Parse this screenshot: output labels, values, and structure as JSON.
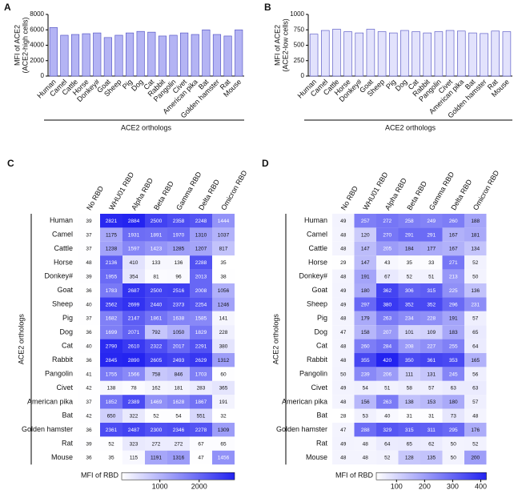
{
  "chart_data": [
    {
      "type": "bar",
      "panel": "A",
      "ylabel": [
        "MFI of ACE2",
        "(ACE2-high cells)"
      ],
      "xlabel": "ACE2 orthologs",
      "categories": [
        "Human",
        "Camel",
        "Cattle",
        "Horse",
        "Donkey#",
        "Goat",
        "Sheep",
        "Pig",
        "Dog",
        "Cat",
        "Rabbit",
        "Pangolin",
        "Civet",
        "American pika",
        "Bat",
        "Golden hamster",
        "Rat",
        "Mouse"
      ],
      "values": [
        6300,
        5300,
        5400,
        5500,
        5600,
        5000,
        5300,
        5600,
        5800,
        5700,
        5200,
        5300,
        5600,
        5400,
        6000,
        5400,
        5200,
        6000
      ],
      "color": "#b4b4f4",
      "edge": "#4a4ac0",
      "ylim": [
        0,
        8000
      ],
      "yticks": [
        0,
        2000,
        4000,
        6000,
        8000
      ]
    },
    {
      "type": "bar",
      "panel": "B",
      "ylabel": [
        "MFI of ACE2",
        "(ACE2-low cells)"
      ],
      "xlabel": "ACE2 orthologs",
      "categories": [
        "Human",
        "Camel",
        "Cattle",
        "Horse",
        "Donkey#",
        "Goat",
        "Sheep",
        "Pig",
        "Dog",
        "Cat",
        "Rabbit",
        "Pangolin",
        "Civet",
        "American pika",
        "Bat",
        "Golden hamster",
        "Rat",
        "Mouse"
      ],
      "values": [
        680,
        740,
        760,
        720,
        700,
        760,
        720,
        700,
        740,
        720,
        700,
        720,
        740,
        730,
        700,
        690,
        730,
        720
      ],
      "color": "#e2e2fc",
      "edge": "#4a4ac0",
      "ylim": [
        0,
        1000
      ],
      "yticks": [
        0,
        250,
        500,
        750,
        1000
      ]
    },
    {
      "type": "heatmap",
      "panel": "C",
      "ylabel": "ACE2 orthologs",
      "columns": [
        "No RBD",
        "WHU01 RBD",
        "Alpha RBD",
        "Beta RBD",
        "Gamma RBD",
        "Delta RBD",
        "Omicron RBD"
      ],
      "rows": [
        "Human",
        "Camel",
        "Cattle",
        "Horse",
        "Donkey#",
        "Goat",
        "Sheep",
        "Pig",
        "Dog",
        "Cat",
        "Rabbit",
        "Pangolin",
        "Civet",
        "American pika",
        "Bat",
        "Golden hamster",
        "Rat",
        "Mouse"
      ],
      "values": [
        [
          39,
          2821,
          2884,
          2500,
          2358,
          2248,
          1444
        ],
        [
          37,
          1175,
          1931,
          1891,
          1970,
          1310,
          1037
        ],
        [
          37,
          1238,
          1597,
          1423,
          1285,
          1207,
          817
        ],
        [
          48,
          2136,
          410,
          133,
          136,
          2288,
          35
        ],
        [
          39,
          1955,
          354,
          81,
          96,
          2013,
          38
        ],
        [
          36,
          1783,
          2687,
          2500,
          2516,
          2008,
          1056
        ],
        [
          40,
          2562,
          2699,
          2440,
          2373,
          2254,
          1246
        ],
        [
          37,
          1682,
          2147,
          1861,
          1638,
          1585,
          141
        ],
        [
          36,
          1699,
          2071,
          792,
          1050,
          1829,
          228
        ],
        [
          40,
          2790,
          2610,
          2322,
          2017,
          2291,
          380
        ],
        [
          36,
          2845,
          2890,
          2605,
          2493,
          2629,
          1312
        ],
        [
          41,
          1755,
          1566,
          758,
          846,
          1703,
          60
        ],
        [
          42,
          138,
          78,
          162,
          181,
          283,
          365
        ],
        [
          37,
          1852,
          2389,
          1469,
          1628,
          1867,
          191
        ],
        [
          42,
          650,
          322,
          52,
          54,
          551,
          32
        ],
        [
          36,
          2361,
          2487,
          2300,
          2346,
          2278,
          1309
        ],
        [
          39,
          52,
          323,
          272,
          272,
          67,
          65
        ],
        [
          36,
          35,
          115,
          1191,
          1316,
          47,
          1456
        ]
      ],
      "colorbar": {
        "label": "MFI of RBD",
        "clim": [
          30,
          2900
        ],
        "ticks": [
          1000,
          2000
        ],
        "colors": [
          "#ffffff",
          "#2323f0"
        ]
      }
    },
    {
      "type": "heatmap",
      "panel": "D",
      "ylabel": "ACE2 orthologs",
      "columns": [
        "No RBD",
        "WHU01 RBD",
        "Alpha RBD",
        "Beta RBD",
        "Gamma RBD",
        "Delta RBD",
        "Omicron RBD"
      ],
      "rows": [
        "Human",
        "Camel",
        "Cattle",
        "Horse",
        "Donkey#",
        "Goat",
        "Sheep",
        "Pig",
        "Dog",
        "Cat",
        "Rabbit",
        "Pangolin",
        "Civet",
        "American pika",
        "Bat",
        "Golden hamster",
        "Rat",
        "Mouse"
      ],
      "values": [
        [
          49,
          257,
          272,
          258,
          249,
          260,
          188
        ],
        [
          48,
          120,
          270,
          291,
          291,
          167,
          181
        ],
        [
          48,
          147,
          205,
          184,
          177,
          167,
          134
        ],
        [
          29,
          147,
          43,
          35,
          33,
          271,
          52
        ],
        [
          48,
          191,
          67,
          52,
          51,
          213,
          50
        ],
        [
          49,
          180,
          362,
          306,
          315,
          225,
          136
        ],
        [
          49,
          297,
          380,
          352,
          352,
          296,
          231
        ],
        [
          48,
          179,
          263,
          234,
          228,
          191,
          57
        ],
        [
          47,
          158,
          207,
          101,
          109,
          183,
          65
        ],
        [
          48,
          260,
          284,
          208,
          227,
          255,
          64
        ],
        [
          48,
          355,
          420,
          350,
          361,
          353,
          165
        ],
        [
          50,
          239,
          206,
          111,
          131,
          245,
          56
        ],
        [
          49,
          54,
          51,
          58,
          57,
          63,
          63
        ],
        [
          48,
          156,
          263,
          138,
          153,
          180,
          57
        ],
        [
          28,
          53,
          40,
          31,
          31,
          73,
          48
        ],
        [
          47,
          288,
          329,
          315,
          311,
          295,
          176
        ],
        [
          49,
          48,
          64,
          65,
          62,
          50,
          52
        ],
        [
          48,
          48,
          52,
          128,
          135,
          50,
          200
        ]
      ],
      "colorbar": {
        "label": "MFI of RBD",
        "clim": [
          28,
          420
        ],
        "ticks": [
          100,
          200,
          300,
          400
        ],
        "colors": [
          "#ffffff",
          "#2323f0"
        ]
      }
    }
  ]
}
